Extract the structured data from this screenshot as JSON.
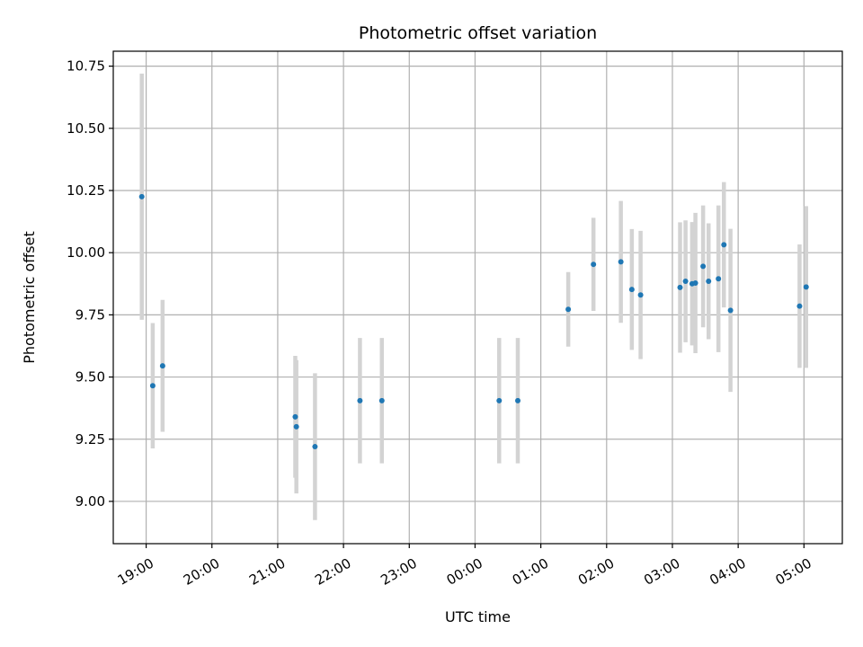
{
  "chart_data": {
    "type": "scatter",
    "title": "Photometric offset variation",
    "xlabel": "UTC time",
    "ylabel": "Photometric offset",
    "x_axis": {
      "kind": "time",
      "range": [
        "18:30",
        "05:35"
      ],
      "ticks": [
        "19:00",
        "20:00",
        "21:00",
        "22:00",
        "23:00",
        "00:00",
        "01:00",
        "02:00",
        "03:00",
        "04:00",
        "05:00"
      ]
    },
    "y_axis": {
      "range": [
        8.83,
        10.81
      ],
      "ticks": [
        "9.00",
        "9.25",
        "9.50",
        "9.75",
        "10.00",
        "10.25",
        "10.50",
        "10.75"
      ]
    },
    "grid": true,
    "colors": {
      "marker": "#1f77b4",
      "errorbar": "#d3d3d3",
      "grid": "#b0b0b0"
    },
    "points": [
      {
        "t": "18:56",
        "y": 10.225,
        "err": 0.495
      },
      {
        "t": "19:06",
        "y": 9.465,
        "err": 0.252
      },
      {
        "t": "19:15",
        "y": 9.545,
        "err": 0.265
      },
      {
        "t": "21:16",
        "y": 9.34,
        "err": 0.245
      },
      {
        "t": "21:17",
        "y": 9.3,
        "err": 0.268
      },
      {
        "t": "21:34",
        "y": 9.22,
        "err": 0.295
      },
      {
        "t": "22:15",
        "y": 9.405,
        "err": 0.252
      },
      {
        "t": "22:35",
        "y": 9.405,
        "err": 0.252
      },
      {
        "t": "00:22",
        "y": 9.405,
        "err": 0.252
      },
      {
        "t": "00:39",
        "y": 9.405,
        "err": 0.252
      },
      {
        "t": "01:25",
        "y": 9.772,
        "err": 0.15
      },
      {
        "t": "01:48",
        "y": 9.953,
        "err": 0.187
      },
      {
        "t": "02:13",
        "y": 9.963,
        "err": 0.245
      },
      {
        "t": "02:23",
        "y": 9.852,
        "err": 0.243
      },
      {
        "t": "02:31",
        "y": 9.83,
        "err": 0.258
      },
      {
        "t": "03:07",
        "y": 9.86,
        "err": 0.262
      },
      {
        "t": "03:12",
        "y": 9.885,
        "err": 0.245
      },
      {
        "t": "03:18",
        "y": 9.875,
        "err": 0.248
      },
      {
        "t": "03:21",
        "y": 9.878,
        "err": 0.282
      },
      {
        "t": "03:28",
        "y": 9.945,
        "err": 0.245
      },
      {
        "t": "03:33",
        "y": 9.885,
        "err": 0.233
      },
      {
        "t": "03:42",
        "y": 9.895,
        "err": 0.295
      },
      {
        "t": "03:47",
        "y": 10.032,
        "err": 0.252
      },
      {
        "t": "03:53",
        "y": 9.768,
        "err": 0.328
      },
      {
        "t": "04:56",
        "y": 9.785,
        "err": 0.248
      },
      {
        "t": "05:02",
        "y": 9.862,
        "err": 0.325
      }
    ]
  }
}
